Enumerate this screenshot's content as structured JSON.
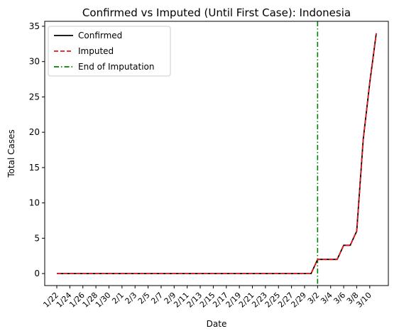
{
  "chart_data": {
    "type": "line",
    "title": "Confirmed vs Imputed (Until First Case): Indonesia",
    "xlabel": "Date",
    "ylabel": "Total Cases",
    "x": [
      "1/22",
      "1/23",
      "1/24",
      "1/25",
      "1/26",
      "1/27",
      "1/28",
      "1/29",
      "1/30",
      "1/31",
      "2/1",
      "2/2",
      "2/3",
      "2/4",
      "2/5",
      "2/6",
      "2/7",
      "2/8",
      "2/9",
      "2/10",
      "2/11",
      "2/12",
      "2/13",
      "2/14",
      "2/15",
      "2/16",
      "2/17",
      "2/18",
      "2/19",
      "2/20",
      "2/21",
      "2/22",
      "2/23",
      "2/24",
      "2/25",
      "2/26",
      "2/27",
      "2/28",
      "2/29",
      "3/1",
      "3/2",
      "3/3",
      "3/4",
      "3/5",
      "3/6",
      "3/7",
      "3/8",
      "3/9",
      "3/10",
      "3/11"
    ],
    "x_tick_labels": [
      "1/22",
      "1/24",
      "1/26",
      "1/28",
      "1/30",
      "2/1",
      "2/3",
      "2/5",
      "2/7",
      "2/9",
      "2/11",
      "2/13",
      "2/15",
      "2/17",
      "2/19",
      "2/21",
      "2/23",
      "2/25",
      "2/27",
      "2/29",
      "3/2",
      "3/4",
      "3/6",
      "3/8",
      "3/10"
    ],
    "ylim": [
      -1.7,
      35.7
    ],
    "y_ticks": [
      0,
      5,
      10,
      15,
      20,
      25,
      30,
      35
    ],
    "grid": false,
    "legend_position": "top-left",
    "series": [
      {
        "name": "Confirmed",
        "color": "#000000",
        "style": "solid",
        "values": [
          0,
          0,
          0,
          0,
          0,
          0,
          0,
          0,
          0,
          0,
          0,
          0,
          0,
          0,
          0,
          0,
          0,
          0,
          0,
          0,
          0,
          0,
          0,
          0,
          0,
          0,
          0,
          0,
          0,
          0,
          0,
          0,
          0,
          0,
          0,
          0,
          0,
          0,
          0,
          0,
          2,
          2,
          2,
          2,
          4,
          4,
          6,
          19,
          27,
          34
        ]
      },
      {
        "name": "Imputed",
        "color": "#e41a1c",
        "style": "dashed",
        "values": [
          0,
          0,
          0,
          0,
          0,
          0,
          0,
          0,
          0,
          0,
          0,
          0,
          0,
          0,
          0,
          0,
          0,
          0,
          0,
          0,
          0,
          0,
          0,
          0,
          0,
          0,
          0,
          0,
          0,
          0,
          0,
          0,
          0,
          0,
          0,
          0,
          0,
          0,
          0,
          0,
          2,
          2,
          2,
          2,
          4,
          4,
          6,
          19,
          27,
          34
        ]
      }
    ],
    "vline": {
      "name": "End of Imputation",
      "x": "3/2",
      "color": "#008000",
      "style": "dashdot"
    }
  }
}
